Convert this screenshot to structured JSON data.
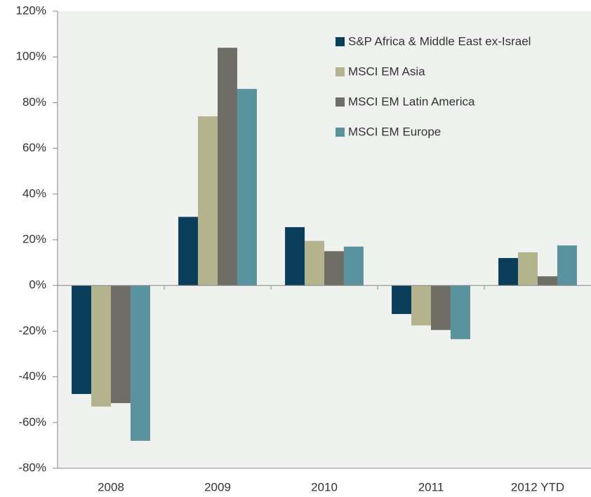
{
  "chart_data": {
    "type": "bar",
    "categories": [
      "2008",
      "2009",
      "2010",
      "2011",
      "2012 YTD"
    ],
    "series": [
      {
        "name": "S&P Africa & Middle East ex-Israel",
        "color": "#0b3e5a",
        "values": [
          -47.5,
          30,
          25.5,
          -12.5,
          12
        ]
      },
      {
        "name": "MSCI EM Asia",
        "color": "#b3b48e",
        "values": [
          -53,
          74,
          19.5,
          -17.5,
          14.5
        ]
      },
      {
        "name": "MSCI EM Latin America",
        "color": "#6e6e66",
        "values": [
          -51.5,
          104,
          15,
          -19.5,
          4
        ]
      },
      {
        "name": "MSCI EM Europe",
        "color": "#5a939e",
        "values": [
          -68,
          86,
          17,
          -23.5,
          17.5
        ]
      }
    ],
    "ylim": [
      -80,
      120
    ],
    "yticks": [
      {
        "value": -80,
        "label": "-80%"
      },
      {
        "value": -60,
        "label": "-60%"
      },
      {
        "value": -40,
        "label": "-40%"
      },
      {
        "value": -20,
        "label": "-20%"
      },
      {
        "value": 0,
        "label": "0%"
      },
      {
        "value": 20,
        "label": "20%"
      },
      {
        "value": 40,
        "label": "40%"
      },
      {
        "value": 60,
        "label": "60%"
      },
      {
        "value": 80,
        "label": "80%"
      },
      {
        "value": 100,
        "label": "100%"
      },
      {
        "value": 120,
        "label": "120%"
      }
    ],
    "legend": "top-right"
  }
}
